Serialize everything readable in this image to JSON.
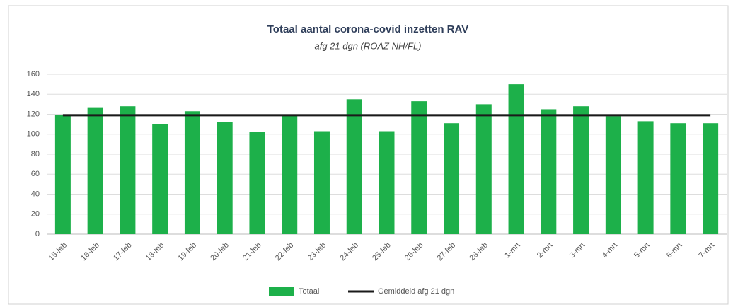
{
  "chart_data": {
    "type": "bar",
    "title": "Totaal aantal corona-covid inzetten RAV",
    "subtitle": "afg 21 dgn (ROAZ NH/FL)",
    "categories": [
      "15-feb",
      "16-feb",
      "17-feb",
      "18-feb",
      "19-feb",
      "20-feb",
      "21-feb",
      "22-feb",
      "23-feb",
      "24-feb",
      "25-feb",
      "26-feb",
      "27-feb",
      "28-feb",
      "1-mrt",
      "2-mrt",
      "3-mrt",
      "4-mrt",
      "5-mrt",
      "6-mrt",
      "7-mrt"
    ],
    "series": [
      {
        "name": "Totaal",
        "color": "#1db04a",
        "values": [
          119,
          127,
          128,
          110,
          123,
          112,
          102,
          119,
          103,
          135,
          103,
          133,
          111,
          130,
          150,
          125,
          128,
          118,
          113,
          111,
          111
        ]
      },
      {
        "name": "Gemiddeld afg 21 dgn",
        "color": "#1a1a1a",
        "type": "line",
        "values": [
          119,
          119,
          119,
          119,
          119,
          119,
          119,
          119,
          119,
          119,
          119,
          119,
          119,
          119,
          119,
          119,
          119,
          119,
          119,
          119,
          119
        ]
      }
    ],
    "ylim": [
      0,
      160
    ],
    "yticks": [
      0,
      20,
      40,
      60,
      80,
      100,
      120,
      140,
      160
    ],
    "grid": true,
    "legend": "bottom"
  }
}
